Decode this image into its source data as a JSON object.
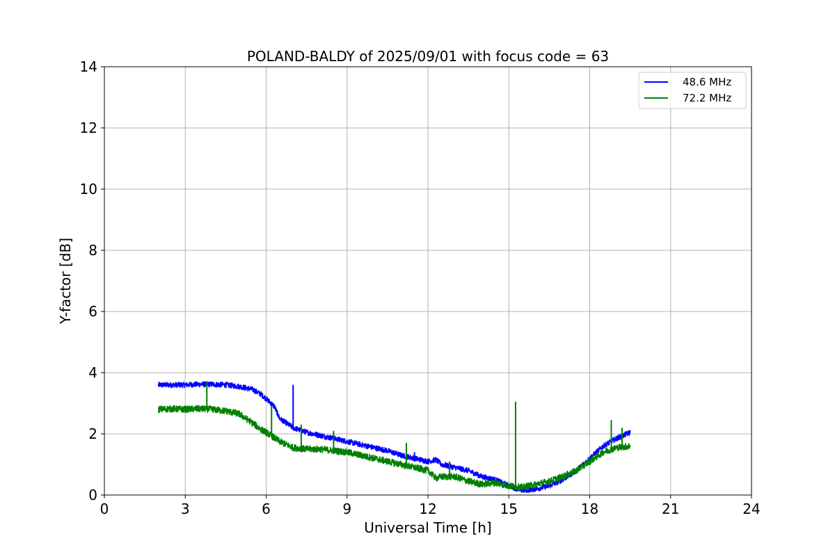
{
  "chart_data": {
    "type": "line",
    "title": "POLAND-BALDY of 2025/09/01 with focus code = 63",
    "xlabel": "Universal Time [h]",
    "ylabel": "Y-factor [dB]",
    "xlim": [
      0,
      24
    ],
    "ylim": [
      0,
      14
    ],
    "xticks": [
      "0",
      "3",
      "6",
      "9",
      "12",
      "15",
      "18",
      "21",
      "24"
    ],
    "yticks": [
      "0",
      "2",
      "4",
      "6",
      "8",
      "10",
      "12",
      "14"
    ],
    "grid": true,
    "legend_position": "top-right",
    "series": [
      {
        "name": "48.6 MHz",
        "color": "#0000ff",
        "x": [
          2.0,
          2.5,
          3.0,
          3.5,
          4.0,
          4.5,
          5.0,
          5.5,
          5.8,
          6.0,
          6.3,
          6.5,
          7.0,
          7.5,
          8.0,
          8.5,
          9.0,
          9.5,
          10.0,
          10.5,
          11.0,
          11.5,
          12.0,
          12.3,
          12.5,
          13.0,
          13.5,
          14.0,
          14.5,
          15.0,
          15.5,
          16.0,
          16.5,
          17.0,
          17.5,
          18.0,
          18.5,
          19.0,
          19.5
        ],
        "y": [
          3.6,
          3.6,
          3.6,
          3.62,
          3.62,
          3.6,
          3.55,
          3.45,
          3.3,
          3.15,
          2.9,
          2.5,
          2.2,
          2.05,
          1.95,
          1.85,
          1.75,
          1.65,
          1.55,
          1.45,
          1.3,
          1.2,
          1.1,
          1.15,
          1.0,
          0.9,
          0.8,
          0.6,
          0.5,
          0.3,
          0.15,
          0.2,
          0.3,
          0.5,
          0.8,
          1.2,
          1.6,
          1.85,
          2.05
        ],
        "spikes": [
          [
            7.0,
            3.6
          ],
          [
            11.5,
            1.4
          ]
        ]
      },
      {
        "name": "72.2 MHz",
        "color": "#008000",
        "x": [
          2.0,
          2.5,
          3.0,
          3.5,
          4.0,
          4.5,
          5.0,
          5.5,
          5.8,
          6.0,
          6.5,
          7.0,
          7.5,
          8.0,
          8.5,
          9.0,
          9.5,
          10.0,
          10.5,
          11.0,
          11.5,
          12.0,
          12.3,
          12.5,
          13.0,
          13.5,
          14.0,
          14.5,
          15.0,
          15.5,
          16.0,
          16.5,
          17.0,
          17.5,
          18.0,
          18.5,
          19.0,
          19.5
        ],
        "y": [
          2.8,
          2.82,
          2.8,
          2.82,
          2.8,
          2.75,
          2.65,
          2.35,
          2.15,
          2.05,
          1.75,
          1.55,
          1.5,
          1.5,
          1.45,
          1.4,
          1.3,
          1.2,
          1.1,
          1.0,
          0.9,
          0.8,
          0.55,
          0.6,
          0.6,
          0.45,
          0.35,
          0.4,
          0.3,
          0.25,
          0.35,
          0.45,
          0.6,
          0.8,
          1.1,
          1.4,
          1.55,
          1.6
        ],
        "spikes": [
          [
            3.8,
            3.7
          ],
          [
            6.2,
            2.9
          ],
          [
            7.3,
            2.3
          ],
          [
            8.5,
            2.1
          ],
          [
            11.2,
            1.7
          ],
          [
            12.8,
            1.1
          ],
          [
            15.25,
            3.05
          ],
          [
            18.8,
            2.45
          ],
          [
            19.2,
            2.2
          ]
        ]
      }
    ]
  }
}
